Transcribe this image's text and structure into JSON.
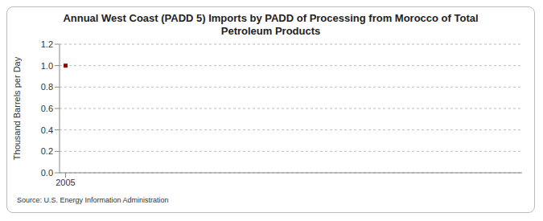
{
  "chart_data": {
    "type": "line",
    "title": "Annual West Coast (PADD 5) Imports by PADD of Processing from Morocco of Total Petroleum Products",
    "y_label": "Thousand Barrels per Day",
    "source": "Source: U.S. Energy Information Administration",
    "categories": [
      "2005"
    ],
    "series": [
      {
        "name": "Morocco",
        "color": "#a00000",
        "values": [
          1.0
        ],
        "marker": "square"
      }
    ],
    "ylim": [
      0,
      1.2
    ],
    "yticks": [
      {
        "value": 0,
        "label": "0.0"
      },
      {
        "value": 0.2,
        "label": "0.2"
      },
      {
        "value": 0.4,
        "label": "0.4"
      },
      {
        "value": 0.6,
        "label": "0.6"
      },
      {
        "value": 0.8,
        "label": "0.8"
      },
      {
        "value": 1.0,
        "label": "1.0"
      },
      {
        "value": 1.2,
        "label": "1.2"
      }
    ],
    "grid": true
  }
}
